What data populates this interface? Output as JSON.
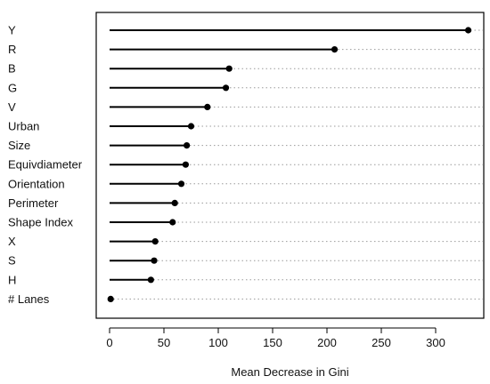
{
  "chart_data": {
    "type": "dot-lollipop",
    "title": "",
    "xlabel": "Mean Decrease in Gini",
    "ylabel": "",
    "xlim": [
      0,
      330
    ],
    "xticks": [
      0,
      50,
      100,
      150,
      200,
      250,
      300
    ],
    "grid": "dotted horizontal guide per variable",
    "categories": [
      "Y",
      "R",
      "B",
      "G",
      "V",
      "Urban",
      "Size",
      "Equivdiameter",
      "Orientation",
      "Perimeter",
      "Shape Index",
      "X",
      "S",
      "H",
      "# Lanes"
    ],
    "values": [
      330,
      207,
      110,
      107,
      90,
      75,
      71,
      70,
      66,
      60,
      58,
      42,
      41,
      38,
      1
    ]
  }
}
